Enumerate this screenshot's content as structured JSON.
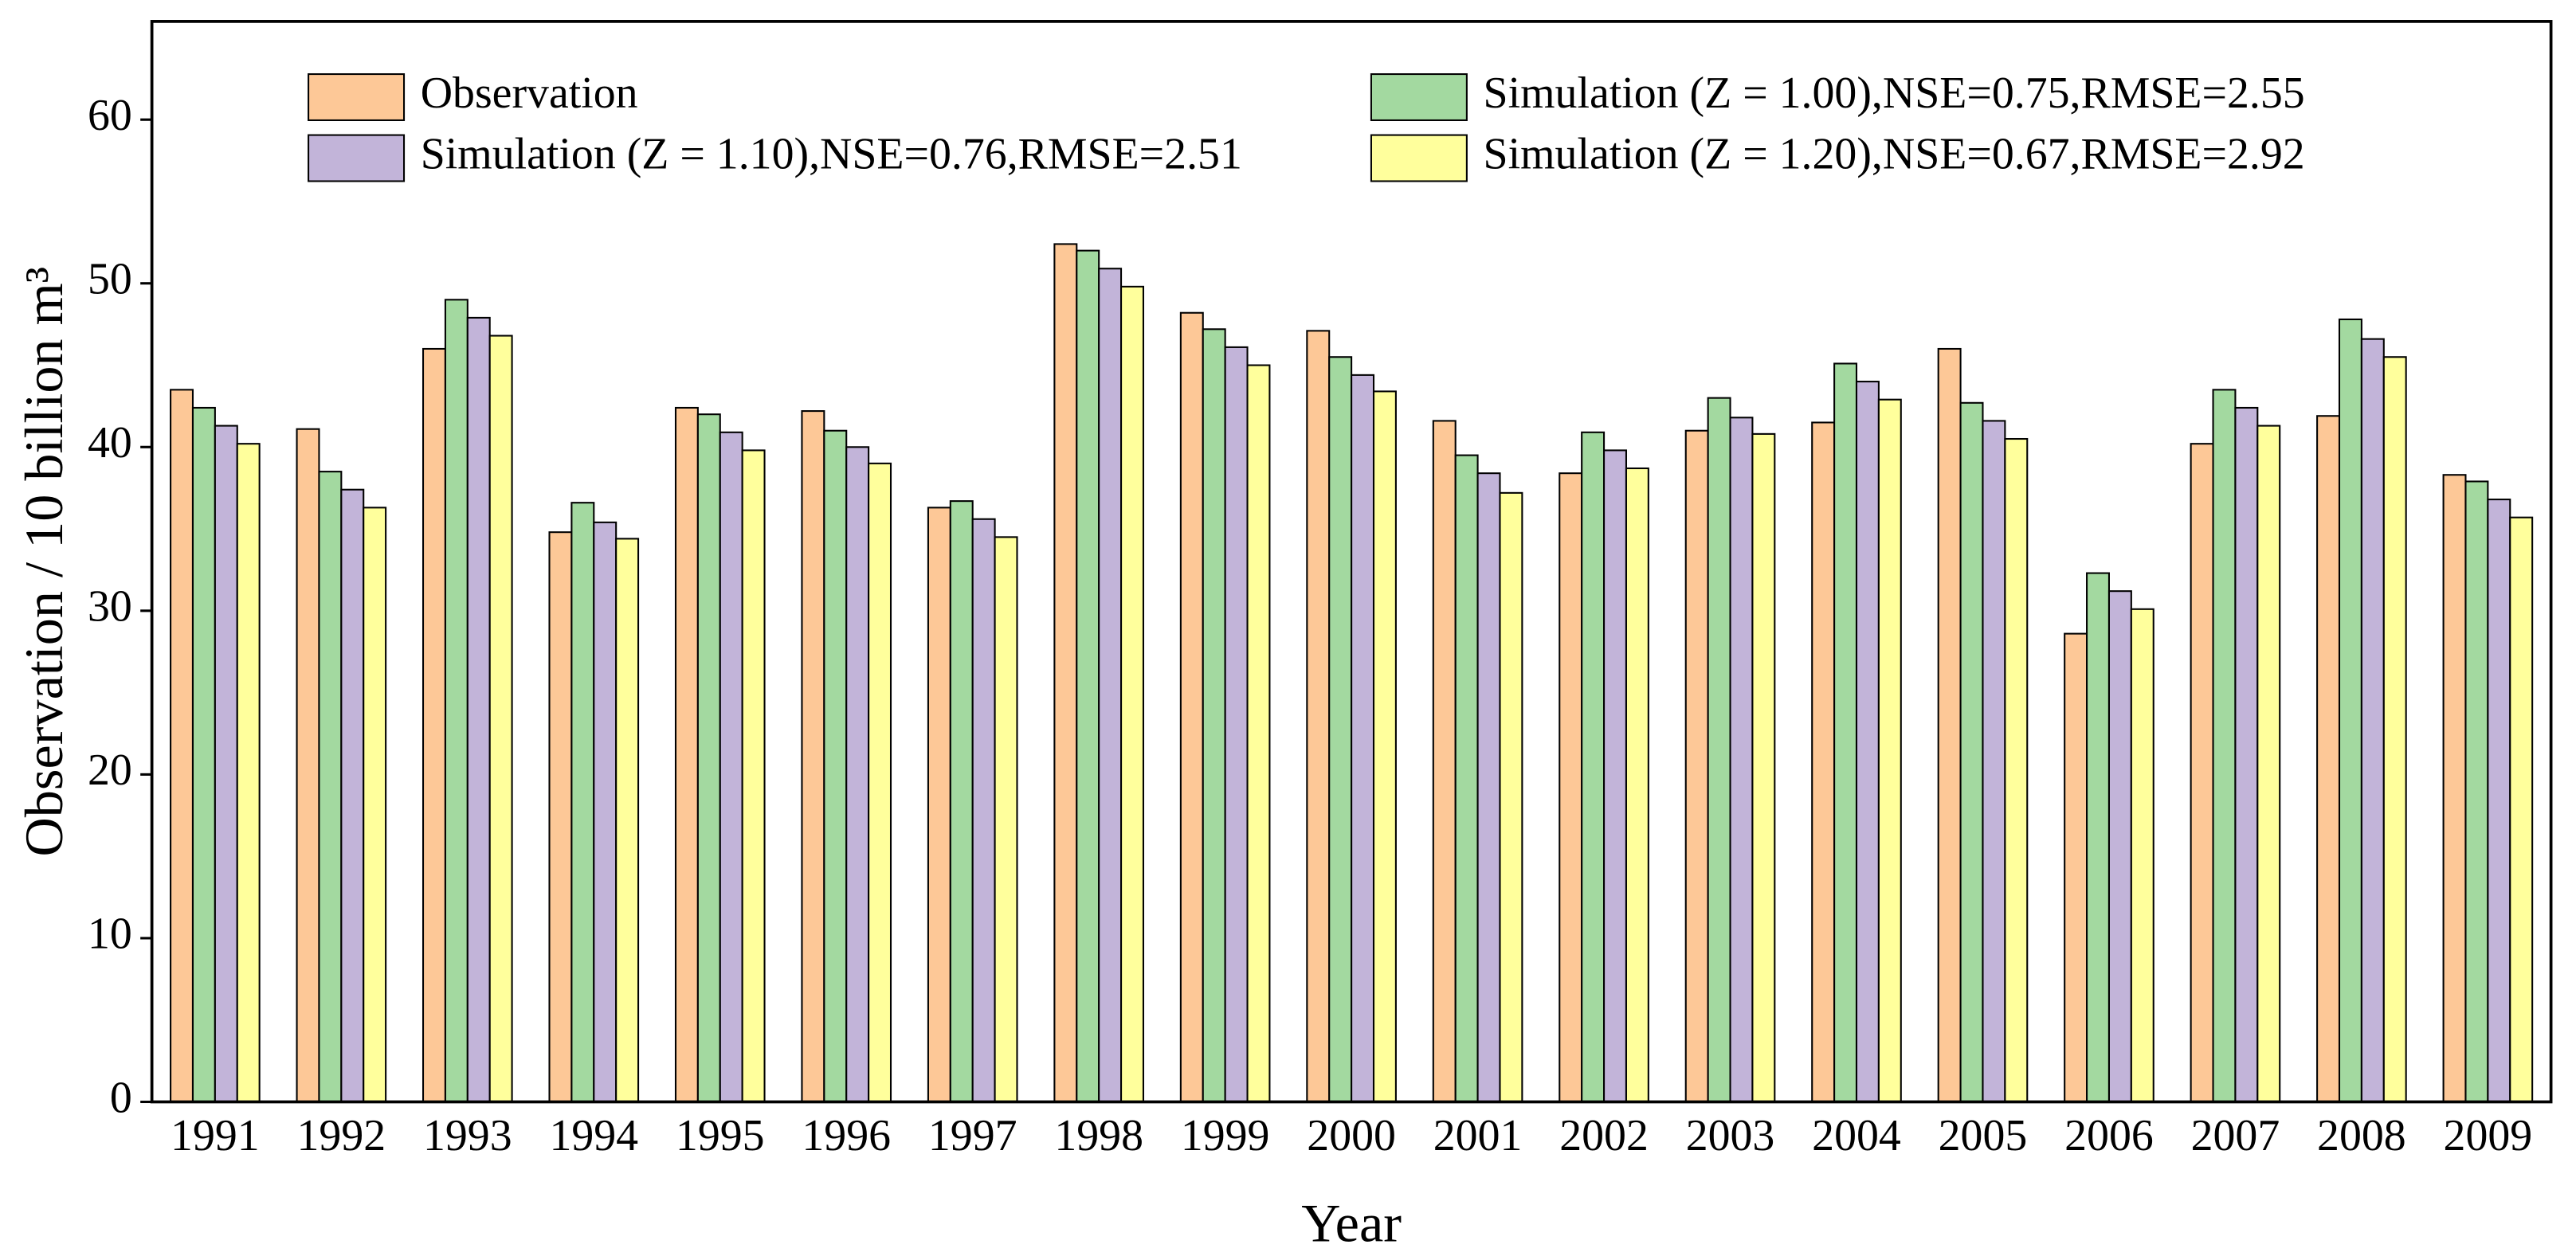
{
  "chart_data": {
    "type": "bar",
    "x_label": "Year",
    "y_label": "Observation / 10 billion m³",
    "categories": [
      "1991",
      "1992",
      "1993",
      "1994",
      "1995",
      "1996",
      "1997",
      "1998",
      "1999",
      "2000",
      "2001",
      "2002",
      "2003",
      "2004",
      "2005",
      "2006",
      "2007",
      "2008",
      "2009"
    ],
    "series": [
      {
        "name": "Observation",
        "color": "#fdc897",
        "values": [
          43.5,
          41.1,
          46.0,
          34.8,
          42.4,
          42.2,
          36.3,
          52.4,
          48.2,
          47.1,
          41.6,
          38.4,
          41.0,
          41.5,
          46.0,
          28.6,
          40.2,
          41.9,
          38.3
        ]
      },
      {
        "name": "Simulation (Z = 1.00),NSE=0.75,RMSE=2.55",
        "color": "#a3d9a0",
        "values": [
          42.4,
          38.5,
          49.0,
          36.6,
          42.0,
          41.0,
          36.7,
          52.0,
          47.2,
          45.5,
          39.5,
          40.9,
          43.0,
          45.1,
          42.7,
          32.3,
          43.5,
          47.8,
          37.9
        ]
      },
      {
        "name": "Simulation (Z = 1.10),NSE=0.76,RMSE=2.51",
        "color": "#c2b4d9",
        "values": [
          41.3,
          37.4,
          47.9,
          35.4,
          40.9,
          40.0,
          35.6,
          50.9,
          46.1,
          44.4,
          38.4,
          39.8,
          41.8,
          44.0,
          41.6,
          31.2,
          42.4,
          46.6,
          36.8
        ]
      },
      {
        "name": "Simulation (Z = 1.20),NSE=0.67,RMSE=2.92",
        "color": "#ffff9c",
        "values": [
          40.2,
          36.3,
          46.8,
          34.4,
          39.8,
          39.0,
          34.5,
          49.8,
          45.0,
          43.4,
          37.2,
          38.7,
          40.8,
          42.9,
          40.5,
          30.1,
          41.3,
          45.5,
          35.7
        ]
      }
    ],
    "ylim": [
      0,
      66
    ],
    "yticks": [
      0,
      10,
      20,
      30,
      40,
      50,
      60
    ],
    "legend": "top",
    "legend_columns": 2
  }
}
